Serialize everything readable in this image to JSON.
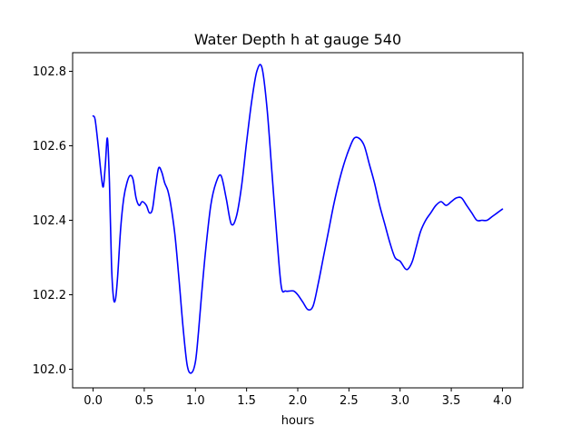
{
  "chart_data": {
    "type": "line",
    "title": "Water Depth h at gauge 540",
    "xlabel": "hours",
    "ylabel": "",
    "xlim": [
      -0.2,
      4.2
    ],
    "ylim": [
      101.95,
      102.85
    ],
    "xticks": [
      0.0,
      0.5,
      1.0,
      1.5,
      2.0,
      2.5,
      3.0,
      3.5,
      4.0
    ],
    "xtick_labels": [
      "0.0",
      "0.5",
      "1.0",
      "1.5",
      "2.0",
      "2.5",
      "3.0",
      "3.5",
      "4.0"
    ],
    "yticks": [
      102.0,
      102.2,
      102.4,
      102.6,
      102.8
    ],
    "ytick_labels": [
      "102.0",
      "102.2",
      "102.4",
      "102.6",
      "102.8"
    ],
    "grid": false,
    "legend": "none",
    "series": [
      {
        "color": "#0000ff",
        "x": [
          0.0,
          0.02,
          0.05,
          0.08,
          0.1,
          0.12,
          0.14,
          0.16,
          0.18,
          0.2,
          0.22,
          0.24,
          0.27,
          0.3,
          0.33,
          0.36,
          0.39,
          0.42,
          0.45,
          0.48,
          0.52,
          0.55,
          0.58,
          0.61,
          0.64,
          0.67,
          0.7,
          0.73,
          0.76,
          0.8,
          0.84,
          0.88,
          0.92,
          0.96,
          1.0,
          1.03,
          1.06,
          1.1,
          1.15,
          1.2,
          1.25,
          1.3,
          1.35,
          1.4,
          1.45,
          1.5,
          1.55,
          1.6,
          1.65,
          1.7,
          1.75,
          1.8,
          1.84,
          1.88,
          1.92,
          1.96,
          2.0,
          2.05,
          2.1,
          2.15,
          2.2,
          2.25,
          2.3,
          2.35,
          2.4,
          2.45,
          2.5,
          2.55,
          2.6,
          2.65,
          2.7,
          2.75,
          2.8,
          2.85,
          2.9,
          2.95,
          3.0,
          3.05,
          3.08,
          3.12,
          3.16,
          3.2,
          3.25,
          3.3,
          3.35,
          3.4,
          3.45,
          3.5,
          3.55,
          3.6,
          3.65,
          3.7,
          3.75,
          3.8,
          3.85,
          3.9,
          3.95,
          4.0
        ],
        "y": [
          102.68,
          102.67,
          102.6,
          102.52,
          102.49,
          102.55,
          102.62,
          102.5,
          102.28,
          102.19,
          102.19,
          102.25,
          102.38,
          102.46,
          102.5,
          102.52,
          102.51,
          102.46,
          102.44,
          102.45,
          102.44,
          102.42,
          102.43,
          102.49,
          102.54,
          102.53,
          102.5,
          102.48,
          102.44,
          102.36,
          102.24,
          102.11,
          102.01,
          101.99,
          102.02,
          102.1,
          102.2,
          102.32,
          102.44,
          102.5,
          102.52,
          102.46,
          102.39,
          102.41,
          102.49,
          102.61,
          102.72,
          102.8,
          102.81,
          102.7,
          102.52,
          102.34,
          102.22,
          102.21,
          102.21,
          102.21,
          102.2,
          102.18,
          102.16,
          102.17,
          102.23,
          102.3,
          102.37,
          102.44,
          102.5,
          102.55,
          102.59,
          102.62,
          102.62,
          102.6,
          102.55,
          102.5,
          102.44,
          102.39,
          102.34,
          102.3,
          102.29,
          102.27,
          102.27,
          102.29,
          102.33,
          102.37,
          102.4,
          102.42,
          102.44,
          102.45,
          102.44,
          102.45,
          102.46,
          102.46,
          102.44,
          102.42,
          102.4,
          102.4,
          102.4,
          102.41,
          102.42,
          102.43
        ]
      }
    ]
  }
}
